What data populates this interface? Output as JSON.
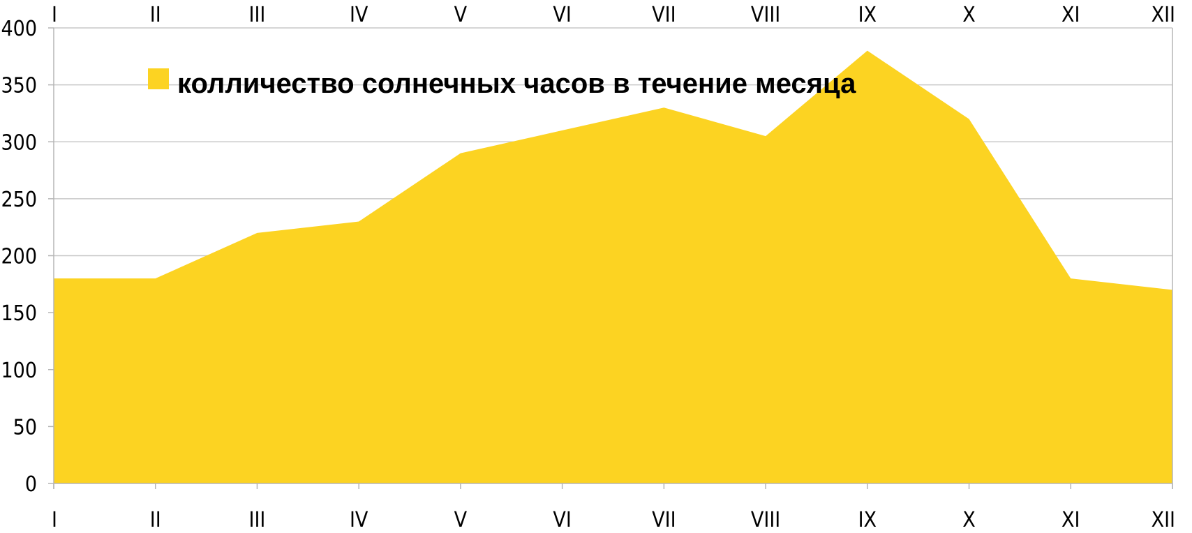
{
  "chart_data": {
    "type": "area",
    "categories": [
      "I",
      "II",
      "III",
      "IV",
      "V",
      "VI",
      "VII",
      "VIII",
      "IX",
      "X",
      "XI",
      "XII"
    ],
    "series": [
      {
        "name": "колличество солнечных часов в течение месяца",
        "values": [
          180,
          180,
          220,
          230,
          290,
          310,
          330,
          305,
          380,
          320,
          180,
          170
        ],
        "color": "#fcd322"
      }
    ],
    "yticks": [
      "0",
      "50",
      "100",
      "150",
      "200",
      "250",
      "300",
      "350",
      "400"
    ],
    "ylim": [
      0,
      400
    ],
    "grid": true,
    "legend_position": "top-left",
    "x_tick_labels_top": true,
    "x_tick_labels_bottom": true
  }
}
